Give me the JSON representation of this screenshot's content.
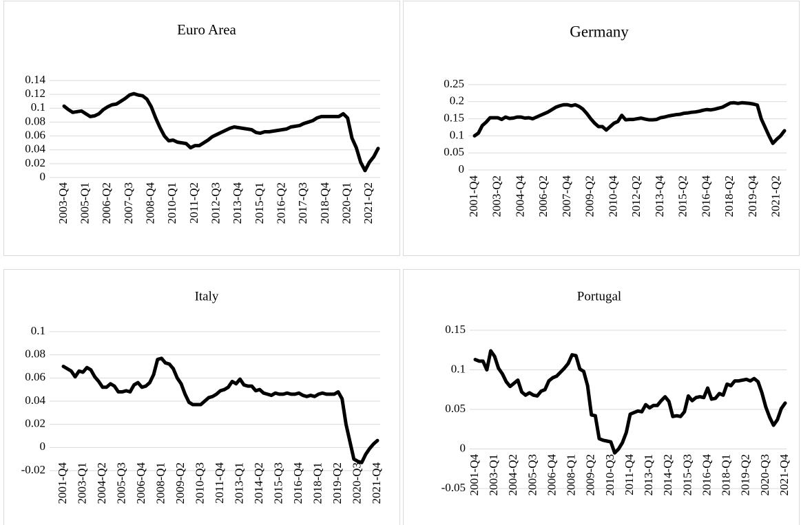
{
  "chart_data": [
    {
      "type": "line",
      "title": "Euro Area",
      "color": "#000000",
      "grid": true,
      "ylim": [
        0,
        0.14
      ],
      "yticks": [
        0,
        0.02,
        0.04,
        0.06,
        0.08,
        0.1,
        0.12,
        0.14
      ],
      "categories": [
        "2003-Q4",
        null,
        null,
        null,
        null,
        "2005-Q1",
        null,
        null,
        null,
        null,
        "2006-Q2",
        null,
        null,
        null,
        null,
        "2007-Q3",
        null,
        null,
        null,
        null,
        "2008-Q4",
        null,
        null,
        null,
        null,
        "2010-Q1",
        null,
        null,
        null,
        null,
        "2011-Q2",
        null,
        null,
        null,
        null,
        "2012-Q3",
        null,
        null,
        null,
        null,
        "2013-Q4",
        null,
        null,
        null,
        null,
        "2015-Q1",
        null,
        null,
        null,
        null,
        "2016-Q2",
        null,
        null,
        null,
        null,
        "2017-Q3",
        null,
        null,
        null,
        null,
        "2018-Q4",
        null,
        null,
        null,
        null,
        "2020-Q1",
        null,
        null,
        null,
        null,
        "2021-Q2",
        null,
        null
      ],
      "values": [
        0.103,
        0.098,
        0.094,
        0.095,
        0.096,
        0.092,
        0.088,
        0.089,
        0.092,
        0.098,
        0.102,
        0.105,
        0.106,
        0.11,
        0.114,
        0.119,
        0.121,
        0.119,
        0.118,
        0.113,
        0.102,
        0.086,
        0.072,
        0.06,
        0.053,
        0.054,
        0.051,
        0.05,
        0.049,
        0.043,
        0.046,
        0.046,
        0.05,
        0.054,
        0.059,
        0.062,
        0.065,
        0.068,
        0.071,
        0.073,
        0.072,
        0.071,
        0.07,
        0.069,
        0.065,
        0.064,
        0.066,
        0.066,
        0.067,
        0.068,
        0.069,
        0.07,
        0.073,
        0.074,
        0.075,
        0.078,
        0.08,
        0.082,
        0.086,
        0.088,
        0.088,
        0.088,
        0.088,
        0.088,
        0.092,
        0.086,
        0.057,
        0.043,
        0.022,
        0.01,
        0.022,
        0.03,
        0.042
      ]
    },
    {
      "type": "line",
      "title": "Germany",
      "color": "#000000",
      "grid": true,
      "ylim": [
        0,
        0.25
      ],
      "yticks": [
        0,
        0.05,
        0.1,
        0.15,
        0.2,
        0.25
      ],
      "categories": [
        "2001-Q4",
        null,
        null,
        null,
        null,
        null,
        "2003-Q2",
        null,
        null,
        null,
        null,
        null,
        "2004-Q4",
        null,
        null,
        null,
        null,
        null,
        "2006-Q2",
        null,
        null,
        null,
        null,
        null,
        "2007-Q4",
        null,
        null,
        null,
        null,
        null,
        "2009-Q2",
        null,
        null,
        null,
        null,
        null,
        "2010-Q4",
        null,
        null,
        null,
        null,
        null,
        "2012-Q2",
        null,
        null,
        null,
        null,
        null,
        "2013-Q4",
        null,
        null,
        null,
        null,
        null,
        "2015-Q2",
        null,
        null,
        null,
        null,
        null,
        "2016-Q4",
        null,
        null,
        null,
        null,
        null,
        "2018-Q2",
        null,
        null,
        null,
        null,
        null,
        "2019-Q4",
        null,
        null,
        null,
        null,
        null,
        "2021-Q2",
        null,
        null
      ],
      "values": [
        0.1,
        0.108,
        0.13,
        0.14,
        0.153,
        0.153,
        0.153,
        0.148,
        0.155,
        0.151,
        0.152,
        0.155,
        0.155,
        0.152,
        0.153,
        0.15,
        0.155,
        0.16,
        0.165,
        0.17,
        0.177,
        0.184,
        0.188,
        0.191,
        0.191,
        0.188,
        0.191,
        0.186,
        0.178,
        0.165,
        0.15,
        0.137,
        0.127,
        0.127,
        0.117,
        0.127,
        0.137,
        0.142,
        0.16,
        0.147,
        0.148,
        0.148,
        0.15,
        0.152,
        0.149,
        0.147,
        0.147,
        0.148,
        0.153,
        0.155,
        0.158,
        0.16,
        0.162,
        0.163,
        0.166,
        0.167,
        0.169,
        0.17,
        0.172,
        0.175,
        0.177,
        0.176,
        0.178,
        0.181,
        0.184,
        0.19,
        0.196,
        0.197,
        0.195,
        0.197,
        0.196,
        0.195,
        0.193,
        0.19,
        0.15,
        0.125,
        0.1,
        0.078,
        0.09,
        0.1,
        0.115
      ]
    },
    {
      "type": "line",
      "title": "Italy",
      "color": "#000000",
      "grid": true,
      "ylim": [
        -0.02,
        0.1
      ],
      "yticks": [
        -0.02,
        0,
        0.02,
        0.04,
        0.06,
        0.08,
        0.1
      ],
      "categories": [
        "2001-Q4",
        null,
        null,
        null,
        null,
        "2003-Q1",
        null,
        null,
        null,
        null,
        "2004-Q2",
        null,
        null,
        null,
        null,
        "2005-Q3",
        null,
        null,
        null,
        null,
        "2006-Q4",
        null,
        null,
        null,
        null,
        "2008-Q1",
        null,
        null,
        null,
        null,
        "2009-Q2",
        null,
        null,
        null,
        null,
        "2010-Q3",
        null,
        null,
        null,
        null,
        "2011-Q4",
        null,
        null,
        null,
        null,
        "2013-Q1",
        null,
        null,
        null,
        null,
        "2014-Q2",
        null,
        null,
        null,
        null,
        "2015-Q3",
        null,
        null,
        null,
        null,
        "2016-Q4",
        null,
        null,
        null,
        null,
        "2018-Q1",
        null,
        null,
        null,
        null,
        "2019-Q2",
        null,
        null,
        null,
        null,
        "2020-Q3",
        null,
        null,
        null,
        null,
        "2021-Q4"
      ],
      "values": [
        0.07,
        0.068,
        0.066,
        0.061,
        0.066,
        0.065,
        0.069,
        0.067,
        0.061,
        0.057,
        0.052,
        0.052,
        0.055,
        0.053,
        0.048,
        0.048,
        0.049,
        0.048,
        0.054,
        0.056,
        0.052,
        0.053,
        0.056,
        0.063,
        0.076,
        0.077,
        0.073,
        0.072,
        0.068,
        0.06,
        0.055,
        0.046,
        0.039,
        0.037,
        0.037,
        0.037,
        0.04,
        0.043,
        0.044,
        0.046,
        0.049,
        0.05,
        0.052,
        0.057,
        0.055,
        0.059,
        0.054,
        0.053,
        0.053,
        0.049,
        0.05,
        0.047,
        0.046,
        0.045,
        0.047,
        0.046,
        0.046,
        0.047,
        0.046,
        0.046,
        0.047,
        0.045,
        0.044,
        0.045,
        0.044,
        0.046,
        0.047,
        0.046,
        0.046,
        0.046,
        0.048,
        0.042,
        0.02,
        0.005,
        -0.01,
        -0.012,
        -0.013,
        -0.006,
        -0.001,
        0.003,
        0.006
      ]
    },
    {
      "type": "line",
      "title": "Portugal",
      "color": "#000000",
      "grid": true,
      "ylim": [
        -0.05,
        0.15
      ],
      "yticks": [
        -0.05,
        0,
        0.05,
        0.1,
        0.15
      ],
      "categories": [
        "2001-Q4",
        null,
        null,
        null,
        null,
        "2003-Q1",
        null,
        null,
        null,
        null,
        "2004-Q2",
        null,
        null,
        null,
        null,
        "2005-Q3",
        null,
        null,
        null,
        null,
        "2006-Q4",
        null,
        null,
        null,
        null,
        "2008-Q1",
        null,
        null,
        null,
        null,
        "2009-Q2",
        null,
        null,
        null,
        null,
        "2010-Q3",
        null,
        null,
        null,
        null,
        "2011-Q4",
        null,
        null,
        null,
        null,
        "2013-Q1",
        null,
        null,
        null,
        null,
        "2014-Q2",
        null,
        null,
        null,
        null,
        "2015-Q3",
        null,
        null,
        null,
        null,
        "2016-Q4",
        null,
        null,
        null,
        null,
        "2018-Q1",
        null,
        null,
        null,
        null,
        "2019-Q2",
        null,
        null,
        null,
        null,
        "2020-Q3",
        null,
        null,
        null,
        null,
        "2021-Q4"
      ],
      "values": [
        0.113,
        0.111,
        0.111,
        0.1,
        0.124,
        0.117,
        0.102,
        0.095,
        0.085,
        0.079,
        0.083,
        0.087,
        0.072,
        0.068,
        0.071,
        0.068,
        0.067,
        0.073,
        0.075,
        0.086,
        0.09,
        0.092,
        0.097,
        0.102,
        0.108,
        0.119,
        0.118,
        0.101,
        0.098,
        0.08,
        0.043,
        0.042,
        0.013,
        0.011,
        0.01,
        0.009,
        -0.005,
        0.0,
        0.008,
        0.021,
        0.044,
        0.046,
        0.048,
        0.047,
        0.056,
        0.052,
        0.055,
        0.055,
        0.061,
        0.066,
        0.06,
        0.041,
        0.042,
        0.041,
        0.047,
        0.067,
        0.061,
        0.065,
        0.066,
        0.065,
        0.077,
        0.063,
        0.064,
        0.07,
        0.068,
        0.082,
        0.08,
        0.086,
        0.086,
        0.087,
        0.088,
        0.086,
        0.089,
        0.085,
        0.071,
        0.053,
        0.04,
        0.03,
        0.037,
        0.051,
        0.058
      ]
    }
  ]
}
